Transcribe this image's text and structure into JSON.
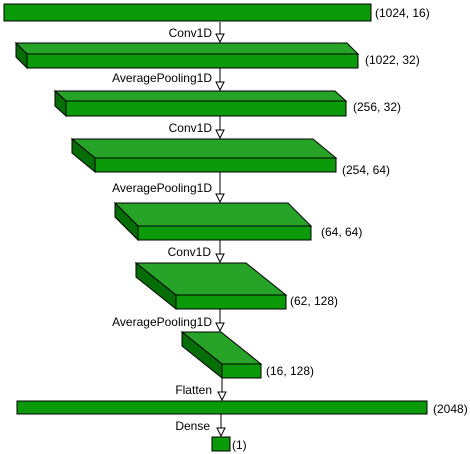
{
  "colors": {
    "top": "#27a327",
    "front": "#0a9a0a",
    "side": "#056d05",
    "stroke": "#000000",
    "arrow": "#000000"
  },
  "layers": [
    {
      "shape": "(1024, 16)"
    },
    {
      "shape": "(1022, 32)"
    },
    {
      "shape": "(256, 32)"
    },
    {
      "shape": "(254, 64)"
    },
    {
      "shape": "(64, 64)"
    },
    {
      "shape": "(62, 128)"
    },
    {
      "shape": "(16, 128)"
    },
    {
      "shape": "(2048)"
    },
    {
      "shape": "(1)"
    }
  ],
  "operations": [
    {
      "label": "Conv1D"
    },
    {
      "label": "AveragePooling1D"
    },
    {
      "label": "Conv1D"
    },
    {
      "label": "AveragePooling1D"
    },
    {
      "label": "Conv1D"
    },
    {
      "label": "AveragePooling1D"
    },
    {
      "label": "Flatten"
    },
    {
      "label": "Dense"
    }
  ]
}
